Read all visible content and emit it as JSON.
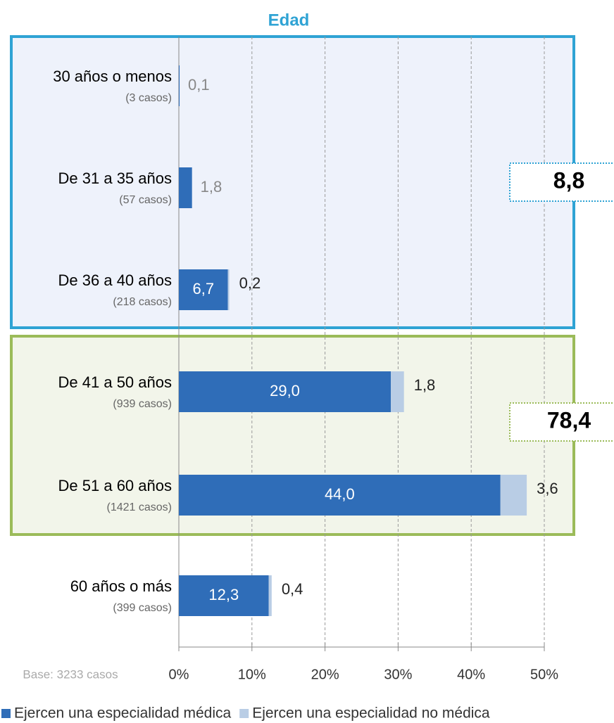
{
  "chart_data": {
    "type": "stacked-bar-horizontal",
    "title": "Edad",
    "categories": [
      "30 años o menos",
      "De 31 a 35 años",
      "De 36 a 40 años",
      "De 41 a 50 años",
      "De 51 a 60 años",
      "60 años o más"
    ],
    "category_notes": [
      "(3 casos)",
      "(57 casos)",
      "(218 casos)",
      "(939 casos)",
      "(1421 casos)",
      "(399 casos)"
    ],
    "series": [
      {
        "name": "Ejercen una especialidad médica",
        "color": "#2f6db8",
        "values": [
          0.1,
          1.8,
          6.7,
          29.0,
          44.0,
          12.3
        ],
        "value_labels": [
          "0,1",
          "1,8",
          "6,7",
          "29,0",
          "44,0",
          "12,3"
        ]
      },
      {
        "name": "Ejercen una especialidad no médica",
        "color": "#b9cde5",
        "values": [
          null,
          null,
          0.2,
          1.8,
          3.6,
          0.4
        ],
        "value_labels": [
          null,
          null,
          "0,2",
          "1,8",
          "3,6",
          "0,4"
        ]
      }
    ],
    "xlim": [
      0,
      50
    ],
    "xticks": [
      {
        "value": 0,
        "label": "0%"
      },
      {
        "value": 10,
        "label": "10%"
      },
      {
        "value": 20,
        "label": "20%"
      },
      {
        "value": 30,
        "label": "30%"
      },
      {
        "value": 40,
        "label": "40%"
      },
      {
        "value": 50,
        "label": "50%"
      }
    ],
    "grid": true,
    "groups": [
      {
        "value": 8.8,
        "label": "8,8",
        "color": "#2fa3d4"
      },
      {
        "value": 78.4,
        "label": "78,4",
        "color": "#9bbb59"
      }
    ],
    "note": "Base: 3233 casos"
  }
}
